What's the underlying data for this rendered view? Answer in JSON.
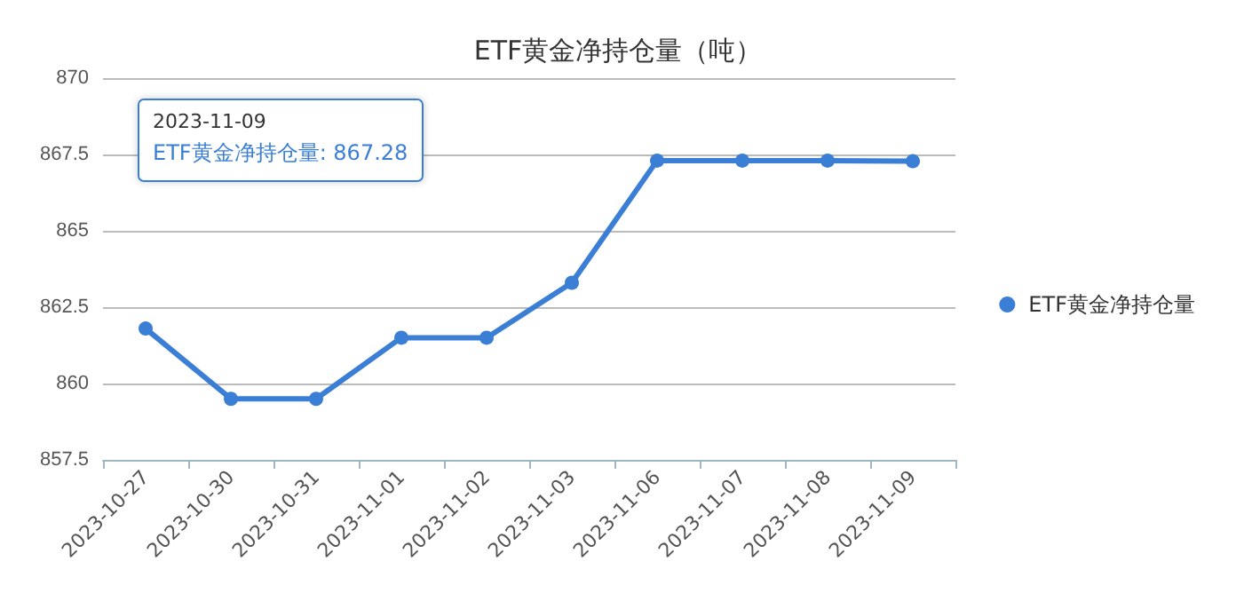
{
  "chart_data": {
    "type": "line",
    "title": "ETF黄金净持仓量（吨）",
    "categories": [
      "2023-10-27",
      "2023-10-30",
      "2023-10-31",
      "2023-11-01",
      "2023-11-02",
      "2023-11-03",
      "2023-11-06",
      "2023-11-07",
      "2023-11-08",
      "2023-11-09"
    ],
    "series": [
      {
        "name": "ETF黄金净持仓量",
        "color": "#3a7fd5",
        "values": [
          861.8,
          859.5,
          859.5,
          861.5,
          861.5,
          863.3,
          867.3,
          867.3,
          867.3,
          867.28
        ]
      }
    ],
    "ylim": [
      857.5,
      870
    ],
    "yticks": [
      857.5,
      860,
      862.5,
      865,
      867.5,
      870
    ],
    "grid": "y",
    "legend": "right",
    "marker": "circle",
    "annotations": [
      "2023-11-09",
      "ETF黄金净持仓量: 867.28"
    ]
  }
}
